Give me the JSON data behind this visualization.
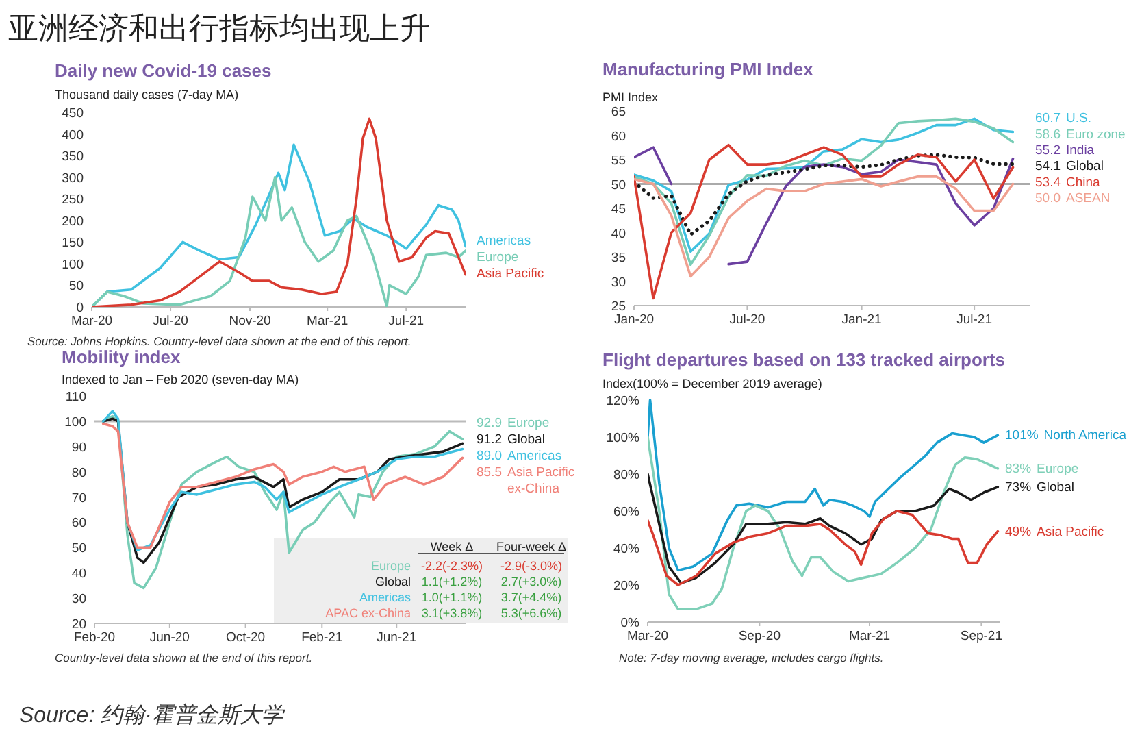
{
  "chart_data": [
    {
      "type": "other",
      "title": "亚洲经济和出行指标均出现上升",
      "annotations": [
        "Source: 约翰·霍普金斯大学"
      ]
    },
    {
      "type": "line",
      "title": "Daily new Covid-19 cases",
      "ylabel": "Thousand daily cases (7-day MA)",
      "legend": "right",
      "xlim": [
        "2020-03-01",
        "2021-10-01"
      ],
      "ylim": [
        0,
        450
      ],
      "yticks": [
        0,
        50,
        100,
        150,
        200,
        250,
        300,
        350,
        400,
        450
      ],
      "xticks": [
        {
          "value": "2020-03-01",
          "label": "Mar-20"
        },
        {
          "value": "2020-07-01",
          "label": "Jul-20"
        },
        {
          "value": "2020-11-01",
          "label": "Nov-20"
        },
        {
          "value": "2021-03-01",
          "label": "Mar-21"
        },
        {
          "value": "2021-07-01",
          "label": "Jul-21"
        }
      ],
      "series": [
        {
          "name": "Americas",
          "color": "#3fc1e0",
          "x": [
            "2020-03-01",
            "2020-03-25",
            "2020-05-01",
            "2020-06-15",
            "2020-07-20",
            "2020-08-15",
            "2020-09-15",
            "2020-10-15",
            "2020-11-10",
            "2020-12-01",
            "2020-12-15",
            "2020-12-25",
            "2021-01-08",
            "2021-02-01",
            "2021-02-25",
            "2021-03-20",
            "2021-04-10",
            "2021-05-01",
            "2021-06-01",
            "2021-07-01",
            "2021-08-01",
            "2021-08-20",
            "2021-09-10",
            "2021-09-20",
            "2021-10-01"
          ],
          "values": [
            0,
            35,
            40,
            90,
            150,
            130,
            110,
            115,
            190,
            260,
            310,
            270,
            375,
            290,
            165,
            175,
            205,
            185,
            165,
            135,
            190,
            235,
            225,
            200,
            140
          ]
        },
        {
          "name": "Europe",
          "color": "#78cdb6",
          "x": [
            "2020-03-01",
            "2020-03-25",
            "2020-04-20",
            "2020-05-20",
            "2020-07-15",
            "2020-09-01",
            "2020-10-01",
            "2020-10-25",
            "2020-11-05",
            "2020-11-25",
            "2020-12-10",
            "2020-12-20",
            "2021-01-05",
            "2021-01-25",
            "2021-02-15",
            "2021-03-10",
            "2021-04-01",
            "2021-04-15",
            "2021-05-10",
            "2021-05-25",
            "2021-06-01",
            "2021-06-05",
            "2021-07-01",
            "2021-07-20",
            "2021-08-01",
            "2021-09-01",
            "2021-09-20",
            "2021-10-01"
          ],
          "values": [
            0,
            35,
            25,
            8,
            5,
            25,
            60,
            160,
            255,
            200,
            300,
            200,
            230,
            150,
            105,
            130,
            200,
            210,
            120,
            40,
            0,
            50,
            30,
            70,
            120,
            125,
            115,
            130
          ]
        },
        {
          "name": "Asia Pacific",
          "color": "#d93b30",
          "x": [
            "2020-03-01",
            "2020-05-01",
            "2020-06-15",
            "2020-07-15",
            "2020-08-15",
            "2020-09-15",
            "2020-10-15",
            "2020-11-05",
            "2020-12-01",
            "2020-12-20",
            "2021-01-20",
            "2021-02-20",
            "2021-03-15",
            "2021-04-01",
            "2021-04-15",
            "2021-04-25",
            "2021-05-05",
            "2021-05-15",
            "2021-06-01",
            "2021-06-20",
            "2021-07-10",
            "2021-08-01",
            "2021-08-15",
            "2021-09-05",
            "2021-09-20",
            "2021-10-01"
          ],
          "values": [
            0,
            5,
            15,
            35,
            70,
            105,
            80,
            60,
            60,
            45,
            40,
            30,
            35,
            100,
            250,
            390,
            435,
            390,
            200,
            105,
            115,
            160,
            175,
            170,
            115,
            75
          ]
        }
      ],
      "annotations": [
        "Source: Johns Hopkins. Country-level data shown at the end of this report."
      ]
    },
    {
      "type": "line",
      "title": "Manufacturing PMI Index",
      "ylabel": "PMI Index",
      "legend": "right",
      "xlim": [
        "2020-01-01",
        "2021-09-28"
      ],
      "ylim": [
        25,
        65
      ],
      "yticks": [
        25,
        30,
        35,
        40,
        45,
        50,
        55,
        60,
        65
      ],
      "xticks": [
        {
          "value": "2020-01",
          "label": "Jan-20"
        },
        {
          "value": "2020-07",
          "label": "Jul-20"
        },
        {
          "value": "2021-01",
          "label": "Jan-21"
        },
        {
          "value": "2021-07",
          "label": "Jul-21"
        }
      ],
      "x": [
        "2020-01",
        "2020-02",
        "2020-03",
        "2020-04",
        "2020-05",
        "2020-06",
        "2020-07",
        "2020-08",
        "2020-09",
        "2020-10",
        "2020-11",
        "2020-12",
        "2021-01",
        "2021-02",
        "2021-03",
        "2021-04",
        "2021-05",
        "2021-06",
        "2021-07",
        "2021-08",
        "2021-09"
      ],
      "ref_lines": [
        {
          "axis": "y",
          "value": 50,
          "color": "#aaaaaa"
        }
      ],
      "series": [
        {
          "name": "U.S.",
          "color": "#3fc1e0",
          "values": [
            51.9,
            50.7,
            48.5,
            36.1,
            39.8,
            49.8,
            50.9,
            53.1,
            53.2,
            53.4,
            56.7,
            57.1,
            59.2,
            58.6,
            59.1,
            60.5,
            62.1,
            62.1,
            63.4,
            61.1,
            60.7
          ],
          "value_labels": [
            null,
            null,
            null,
            null,
            null,
            null,
            null,
            null,
            null,
            null,
            null,
            null,
            null,
            null,
            null,
            null,
            null,
            null,
            null,
            null,
            "60.7"
          ]
        },
        {
          "name": "Euro zone",
          "color": "#78cdb6",
          "values": [
            51.5,
            50,
            46,
            33.4,
            39.4,
            47.4,
            51.8,
            51.7,
            53.7,
            54.8,
            53.8,
            55.2,
            54.8,
            57.9,
            62.5,
            62.9,
            63.1,
            63.4,
            62.8,
            61.4,
            58.6
          ],
          "value_labels": [
            null,
            null,
            null,
            null,
            null,
            null,
            null,
            null,
            null,
            null,
            null,
            null,
            null,
            null,
            null,
            null,
            null,
            null,
            null,
            null,
            "58.6"
          ]
        },
        {
          "name": "India",
          "color": "#6b3fa0",
          "values": [
            55.5,
            57.5,
            50,
            null,
            null,
            33.5,
            34,
            42,
            49.5,
            53.5,
            54,
            53.5,
            52,
            52.5,
            55,
            54.5,
            54,
            46,
            41.5,
            45,
            55.2
          ],
          "value_labels": [
            null,
            null,
            null,
            null,
            null,
            null,
            null,
            null,
            null,
            null,
            null,
            null,
            null,
            null,
            null,
            null,
            null,
            null,
            null,
            null,
            "55.2"
          ]
        },
        {
          "name": "Global",
          "color": "#1a1a1a",
          "line_style": "dotted",
          "values": [
            50.4,
            47.1,
            47.6,
            39.6,
            42.4,
            47.9,
            50.6,
            51.8,
            52.4,
            53,
            53.8,
            53.8,
            53.5,
            53.9,
            55,
            55.8,
            56,
            55.5,
            55.4,
            54.1,
            54.1
          ],
          "value_labels": [
            null,
            null,
            null,
            null,
            null,
            null,
            null,
            null,
            null,
            null,
            null,
            null,
            null,
            null,
            null,
            null,
            null,
            null,
            null,
            null,
            "54.1"
          ]
        },
        {
          "name": "China",
          "color": "#d93b30",
          "values": [
            51.5,
            26.5,
            40,
            44,
            55,
            58,
            54,
            54,
            54.5,
            56,
            57.5,
            56,
            51.5,
            51.5,
            54,
            56,
            55.5,
            50.5,
            55,
            47,
            53.4
          ],
          "value_labels": [
            null,
            null,
            null,
            null,
            null,
            null,
            null,
            null,
            null,
            null,
            null,
            null,
            null,
            null,
            null,
            null,
            null,
            null,
            null,
            null,
            "53.4"
          ]
        },
        {
          "name": "ASEAN",
          "color": "#f0a090",
          "values": [
            51,
            50,
            43.5,
            31,
            35,
            43,
            46.5,
            49,
            48.5,
            48.5,
            50,
            50.5,
            51,
            49.5,
            50.5,
            51.5,
            51.5,
            49,
            44.5,
            44.5,
            50
          ],
          "value_labels": [
            null,
            null,
            null,
            null,
            null,
            null,
            null,
            null,
            null,
            null,
            null,
            null,
            null,
            null,
            null,
            null,
            null,
            null,
            null,
            null,
            "50.0"
          ]
        }
      ]
    },
    {
      "type": "line",
      "title": "Mobility index",
      "ylabel": "Indexed to Jan – Feb 2020 (seven-day  MA)",
      "legend": "right",
      "xlim": [
        "2020-02-01",
        "2021-09-20"
      ],
      "ylim": [
        20,
        110
      ],
      "yticks": [
        20,
        30,
        40,
        50,
        60,
        70,
        80,
        90,
        100,
        110
      ],
      "xticks": [
        {
          "value": "2020-02-01",
          "label": "Feb-20"
        },
        {
          "value": "2020-06-01",
          "label": "Jun-20"
        },
        {
          "value": "2020-10-01",
          "label": "Oct-20"
        },
        {
          "value": "2021-02-01",
          "label": "Feb-21"
        },
        {
          "value": "2021-06-01",
          "label": "Jun-21"
        }
      ],
      "ref_lines": [
        {
          "axis": "y",
          "value": 100,
          "color": "#bbbbbb"
        }
      ],
      "series": [
        {
          "name": "Europe",
          "color": "#78cdb6",
          "x": [
            "2020-02-15",
            "2020-03-01",
            "2020-03-10",
            "2020-03-25",
            "2020-04-05",
            "2020-04-20",
            "2020-05-10",
            "2020-06-01",
            "2020-06-20",
            "2020-07-15",
            "2020-08-15",
            "2020-09-01",
            "2020-09-20",
            "2020-10-15",
            "2020-11-01",
            "2020-11-20",
            "2020-12-01",
            "2020-12-10",
            "2021-01-01",
            "2021-01-20",
            "2021-02-10",
            "2021-03-01",
            "2021-03-25",
            "2021-04-01",
            "2021-04-20",
            "2021-05-10",
            "2021-06-01",
            "2021-07-01",
            "2021-08-01",
            "2021-08-25",
            "2021-09-15"
          ],
          "values": [
            100,
            102,
            100,
            55,
            36,
            34,
            42,
            60,
            75,
            80,
            84,
            86,
            82,
            80,
            72,
            65,
            72,
            48,
            57,
            60,
            67,
            72,
            62,
            71,
            70,
            80,
            86,
            87,
            90,
            96,
            92.9
          ],
          "value_labels": [
            null,
            null,
            null,
            null,
            null,
            null,
            null,
            null,
            null,
            null,
            null,
            null,
            null,
            null,
            null,
            null,
            null,
            null,
            null,
            null,
            null,
            null,
            null,
            null,
            null,
            null,
            null,
            null,
            null,
            null,
            "92.9"
          ]
        },
        {
          "name": "Global",
          "color": "#1a1a1a",
          "x": [
            "2020-02-15",
            "2020-03-01",
            "2020-03-10",
            "2020-03-25",
            "2020-04-10",
            "2020-04-20",
            "2020-05-15",
            "2020-06-15",
            "2020-07-15",
            "2020-08-15",
            "2020-09-15",
            "2020-10-15",
            "2020-11-15",
            "2020-12-01",
            "2020-12-10",
            "2021-01-01",
            "2021-02-01",
            "2021-03-01",
            "2021-04-01",
            "2021-05-01",
            "2021-05-20",
            "2021-06-15",
            "2021-07-15",
            "2021-08-15",
            "2021-09-15"
          ],
          "values": [
            100,
            101,
            100,
            60,
            46,
            44,
            52,
            70,
            74,
            75,
            77,
            78,
            74,
            77,
            66,
            69,
            72,
            77,
            77,
            80,
            85,
            86,
            87,
            88,
            91.2
          ],
          "value_labels": [
            null,
            null,
            null,
            null,
            null,
            null,
            null,
            null,
            null,
            null,
            null,
            null,
            null,
            null,
            null,
            null,
            null,
            null,
            null,
            null,
            null,
            null,
            null,
            null,
            "91.2"
          ]
        },
        {
          "name": "Americas",
          "color": "#3fc1e0",
          "x": [
            "2020-02-15",
            "2020-03-01",
            "2020-03-10",
            "2020-03-25",
            "2020-04-10",
            "2020-05-01",
            "2020-06-01",
            "2020-06-20",
            "2020-07-15",
            "2020-08-15",
            "2020-09-15",
            "2020-10-15",
            "2020-11-01",
            "2020-11-20",
            "2020-12-01",
            "2020-12-10",
            "2021-01-01",
            "2021-02-01",
            "2021-03-01",
            "2021-04-01",
            "2021-05-01",
            "2021-06-01",
            "2021-07-01",
            "2021-08-01",
            "2021-09-15"
          ],
          "values": [
            100,
            104,
            101,
            60,
            49,
            51,
            65,
            72,
            71,
            73,
            75,
            76,
            74,
            69,
            72,
            64,
            67,
            71,
            74,
            77,
            80,
            85,
            86,
            86,
            89
          ],
          "value_labels": [
            null,
            null,
            null,
            null,
            null,
            null,
            null,
            null,
            null,
            null,
            null,
            null,
            null,
            null,
            null,
            null,
            null,
            null,
            null,
            null,
            null,
            null,
            null,
            null,
            "89.0"
          ]
        },
        {
          "name": "Asia Pacific ex-China",
          "color": "#f08078",
          "x": [
            "2020-02-15",
            "2020-03-01",
            "2020-03-10",
            "2020-03-25",
            "2020-04-10",
            "2020-05-01",
            "2020-06-01",
            "2020-06-20",
            "2020-07-15",
            "2020-08-15",
            "2020-09-15",
            "2020-10-15",
            "2020-11-15",
            "2020-12-01",
            "2020-12-10",
            "2021-01-01",
            "2021-02-01",
            "2021-02-20",
            "2021-03-10",
            "2021-04-10",
            "2021-04-25",
            "2021-05-15",
            "2021-06-15",
            "2021-07-15",
            "2021-08-15",
            "2021-09-15"
          ],
          "values": [
            99,
            98,
            96,
            60,
            50,
            50,
            68,
            74,
            74,
            76,
            78,
            81,
            83,
            80,
            75,
            78,
            80,
            82,
            80,
            82,
            69,
            75,
            78,
            75,
            78,
            85.5
          ],
          "value_labels": [
            null,
            null,
            null,
            null,
            null,
            null,
            null,
            null,
            null,
            null,
            null,
            null,
            null,
            null,
            null,
            null,
            null,
            null,
            null,
            null,
            null,
            null,
            null,
            null,
            null,
            "85.5"
          ]
        }
      ],
      "annotations": [
        "Week Δ",
        "Four-week Δ",
        "Europe",
        "-2.2(-2.3%)",
        "-2.9(-3.0%)",
        "Global",
        "1.1(+1.2%)",
        "2.7(+3.0%)",
        "Americas",
        "1.0(+1.1%)",
        "3.7(+4.4%)",
        "APAC ex-China",
        "3.1(+3.8%)",
        "5.3(+6.6%)",
        "Country-level data shown at the end of this report."
      ]
    },
    {
      "type": "line",
      "title": "Flight departures based on 133 tracked airports",
      "ylabel": "Index(100%  = December  2019 average)",
      "legend": "right",
      "xlim": [
        "2020-03-01",
        "2021-10-01"
      ],
      "ylim": [
        0,
        120
      ],
      "yticks": [
        {
          "value": 0,
          "label": "0%"
        },
        {
          "value": 20,
          "label": "20%"
        },
        {
          "value": 40,
          "label": "40%"
        },
        {
          "value": 60,
          "label": "60%"
        },
        {
          "value": 80,
          "label": "80%"
        },
        {
          "value": 100,
          "label": "100%"
        },
        {
          "value": 120,
          "label": "120%"
        }
      ],
      "xticks": [
        {
          "value": "2020-03-01",
          "label": "Mar-20"
        },
        {
          "value": "2020-09-01",
          "label": "Sep-20"
        },
        {
          "value": "2021-03-01",
          "label": "Mar-21"
        },
        {
          "value": "2021-09-01",
          "label": "Sep-21"
        }
      ],
      "series": [
        {
          "name": "North America",
          "color": "#1aa0d0",
          "x": [
            "2020-03-01",
            "2020-03-05",
            "2020-03-10",
            "2020-03-20",
            "2020-04-05",
            "2020-04-20",
            "2020-05-15",
            "2020-06-15",
            "2020-07-10",
            "2020-07-25",
            "2020-08-15",
            "2020-09-15",
            "2020-10-15",
            "2020-11-15",
            "2020-12-01",
            "2020-12-15",
            "2020-12-25",
            "2021-01-15",
            "2021-02-01",
            "2021-02-20",
            "2021-03-01",
            "2021-03-10",
            "2021-04-01",
            "2021-04-20",
            "2021-05-15",
            "2021-06-01",
            "2021-06-20",
            "2021-07-15",
            "2021-08-01",
            "2021-08-20",
            "2021-09-05",
            "2021-09-28"
          ],
          "values": [
            100,
            120,
            105,
            75,
            40,
            28,
            30,
            37,
            55,
            63,
            64,
            62,
            65,
            65,
            72,
            63,
            66,
            65,
            63,
            60,
            57,
            65,
            72,
            78,
            85,
            90,
            97,
            102,
            101,
            100,
            97,
            101
          ],
          "value_labels": [
            null,
            null,
            null,
            null,
            null,
            null,
            null,
            null,
            null,
            null,
            null,
            null,
            null,
            null,
            null,
            null,
            null,
            null,
            null,
            null,
            null,
            null,
            null,
            null,
            null,
            null,
            null,
            null,
            null,
            null,
            null,
            "101%"
          ]
        },
        {
          "name": "Europe",
          "color": "#7fd0b8",
          "x": [
            "2020-03-01",
            "2020-03-20",
            "2020-04-05",
            "2020-04-20",
            "2020-05-20",
            "2020-06-15",
            "2020-07-01",
            "2020-07-20",
            "2020-08-10",
            "2020-08-25",
            "2020-09-15",
            "2020-10-05",
            "2020-10-25",
            "2020-11-10",
            "2020-11-25",
            "2020-12-10",
            "2021-01-01",
            "2021-01-25",
            "2021-02-20",
            "2021-03-20",
            "2021-04-15",
            "2021-05-15",
            "2021-06-10",
            "2021-07-01",
            "2021-07-20",
            "2021-08-05",
            "2021-08-25",
            "2021-09-28"
          ],
          "values": [
            100,
            60,
            15,
            7,
            7,
            10,
            18,
            40,
            60,
            63,
            60,
            50,
            33,
            25,
            35,
            35,
            27,
            22,
            24,
            26,
            32,
            40,
            50,
            70,
            85,
            89,
            88,
            83
          ],
          "value_labels": [
            null,
            null,
            null,
            null,
            null,
            null,
            null,
            null,
            null,
            null,
            null,
            null,
            null,
            null,
            null,
            null,
            null,
            null,
            null,
            null,
            null,
            null,
            null,
            null,
            null,
            null,
            null,
            "83%"
          ]
        },
        {
          "name": "Global",
          "color": "#1a1a1a",
          "x": [
            "2020-03-01",
            "2020-03-15",
            "2020-04-05",
            "2020-04-25",
            "2020-05-20",
            "2020-06-20",
            "2020-07-20",
            "2020-08-10",
            "2020-09-15",
            "2020-10-15",
            "2020-11-15",
            "2020-12-10",
            "2020-12-25",
            "2021-01-20",
            "2021-02-15",
            "2021-03-05",
            "2021-03-20",
            "2021-04-15",
            "2021-05-15",
            "2021-06-15",
            "2021-07-10",
            "2021-07-25",
            "2021-08-15",
            "2021-09-05",
            "2021-09-28"
          ],
          "values": [
            80,
            60,
            30,
            21,
            24,
            32,
            42,
            53,
            53,
            54,
            53,
            56,
            52,
            48,
            42,
            45,
            55,
            60,
            60,
            63,
            72,
            70,
            66,
            70,
            73
          ],
          "value_labels": [
            null,
            null,
            null,
            null,
            null,
            null,
            null,
            null,
            null,
            null,
            null,
            null,
            null,
            null,
            null,
            null,
            null,
            null,
            null,
            null,
            null,
            null,
            null,
            null,
            "73%"
          ]
        },
        {
          "name": "Asia Pacific",
          "color": "#d93b30",
          "x": [
            "2020-03-01",
            "2020-03-10",
            "2020-04-01",
            "2020-04-20",
            "2020-05-20",
            "2020-06-20",
            "2020-07-20",
            "2020-08-15",
            "2020-09-15",
            "2020-10-15",
            "2020-11-15",
            "2020-12-10",
            "2020-12-25",
            "2021-01-20",
            "2021-02-05",
            "2021-02-15",
            "2021-03-05",
            "2021-03-25",
            "2021-04-15",
            "2021-05-10",
            "2021-06-05",
            "2021-06-25",
            "2021-07-15",
            "2021-07-25",
            "2021-08-10",
            "2021-08-25",
            "2021-09-10",
            "2021-09-28"
          ],
          "values": [
            55,
            47,
            25,
            20,
            25,
            37,
            43,
            46,
            48,
            52,
            52,
            53,
            50,
            42,
            38,
            31,
            48,
            56,
            60,
            58,
            48,
            47,
            45,
            45,
            32,
            32,
            42,
            49
          ],
          "value_labels": [
            null,
            null,
            null,
            null,
            null,
            null,
            null,
            null,
            null,
            null,
            null,
            null,
            null,
            null,
            null,
            null,
            null,
            null,
            null,
            null,
            null,
            null,
            null,
            null,
            null,
            null,
            null,
            "49%"
          ]
        }
      ],
      "annotations": [
        "Note: 7-day moving average, includes cargo flights."
      ]
    }
  ]
}
